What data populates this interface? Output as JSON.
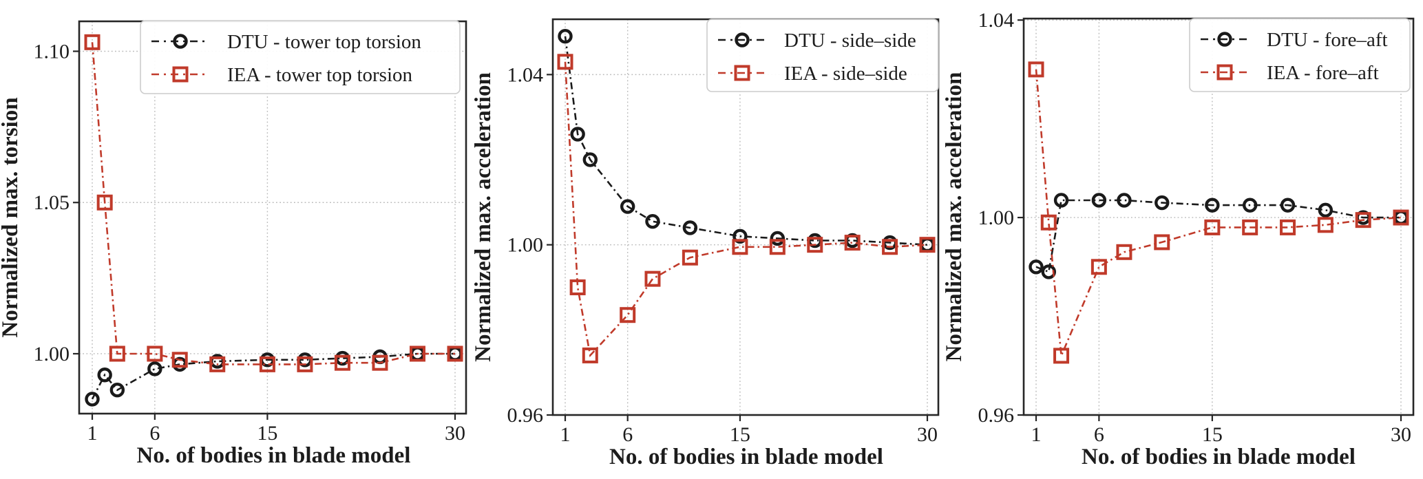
{
  "figure": {
    "background": "#ffffff",
    "text_color": "#1c1c1c",
    "spine_color": "#262626",
    "grid_color": "#b9b9b9",
    "legend_border_color": "#cccccc"
  },
  "chart_data": [
    {
      "type": "line",
      "title": "",
      "xlabel": "No. of bodies in blade model",
      "ylabel": "Normalized max. torsion",
      "x": [
        1,
        2,
        3,
        6,
        8,
        11,
        15,
        18,
        21,
        24,
        27,
        30
      ],
      "xticks": [
        1,
        6,
        15,
        30
      ],
      "xtick_labels": [
        "1",
        "6",
        "15",
        "30"
      ],
      "yticks": [
        1.0,
        1.05,
        1.1
      ],
      "ytick_labels": [
        "1.00",
        "1.05",
        "1.10"
      ],
      "xlim": [
        -0.45,
        31.45
      ],
      "ylim": [
        0.9802,
        1.1099
      ],
      "grid": true,
      "legend_position": "upper right",
      "series": [
        {
          "name": "DTU - tower top torsion",
          "color": "#1a1a1a",
          "marker": "circle",
          "linestyle": "dashdot",
          "values": [
            0.985,
            0.993,
            0.988,
            0.995,
            0.9965,
            0.9975,
            0.998,
            0.998,
            0.9985,
            0.999,
            1.0,
            1.0
          ]
        },
        {
          "name": "IEA - tower top torsion",
          "color": "#c03a2a",
          "marker": "square",
          "linestyle": "dashdot",
          "values": [
            1.103,
            1.05,
            1.0,
            1.0,
            0.998,
            0.9965,
            0.9965,
            0.9965,
            0.997,
            0.997,
            1.0,
            1.0
          ]
        }
      ]
    },
    {
      "type": "line",
      "title": "",
      "xlabel": "No. of bodies in blade model",
      "ylabel": "Normalized max. acceleration",
      "x": [
        1,
        2,
        3,
        6,
        8,
        11,
        15,
        18,
        21,
        24,
        27,
        30
      ],
      "xticks": [
        1,
        6,
        15,
        30
      ],
      "xtick_labels": [
        "1",
        "6",
        "15",
        "30"
      ],
      "yticks": [
        0.96,
        1.0,
        1.04
      ],
      "ytick_labels": [
        "0.96",
        "1.00",
        "1.04"
      ],
      "xlim": [
        -0.45,
        31.45
      ],
      "ylim": [
        0.96,
        1.053
      ],
      "grid": true,
      "legend_position": "upper right",
      "series": [
        {
          "name": "DTU - side–side",
          "color": "#1a1a1a",
          "marker": "circle",
          "linestyle": "dashdot",
          "values": [
            1.049,
            1.026,
            1.02,
            1.009,
            1.0055,
            1.004,
            1.002,
            1.0015,
            1.001,
            1.001,
            1.0005,
            1.0
          ]
        },
        {
          "name": "IEA - side–side",
          "color": "#c03a2a",
          "marker": "square",
          "linestyle": "dashdot",
          "values": [
            1.043,
            0.99,
            0.974,
            0.9835,
            0.992,
            0.997,
            0.9995,
            0.9995,
            1.0,
            1.0005,
            0.9995,
            1.0
          ]
        }
      ]
    },
    {
      "type": "line",
      "title": "",
      "xlabel": "No. of bodies in blade model",
      "ylabel": "Normalized max. acceleration",
      "x": [
        1,
        2,
        3,
        6,
        8,
        11,
        15,
        18,
        21,
        24,
        27,
        30
      ],
      "xticks": [
        1,
        6,
        15,
        30
      ],
      "xtick_labels": [
        "1",
        "6",
        "15",
        "30"
      ],
      "yticks": [
        0.96,
        1.0,
        1.04
      ],
      "ytick_labels": [
        "0.96",
        "1.00",
        "1.04"
      ],
      "xlim": [
        -0.45,
        31.45
      ],
      "ylim": [
        0.96,
        1.0403
      ],
      "grid": true,
      "legend_position": "upper right",
      "series": [
        {
          "name": "DTU - fore–aft",
          "color": "#1a1a1a",
          "marker": "circle",
          "linestyle": "dashdot",
          "values": [
            0.99,
            0.989,
            1.0035,
            1.0035,
            1.0035,
            1.003,
            1.0025,
            1.0025,
            1.0025,
            1.0015,
            1.0,
            1.0
          ]
        },
        {
          "name": "IEA - fore–aft",
          "color": "#c03a2a",
          "marker": "square",
          "linestyle": "dashdot",
          "values": [
            1.03,
            0.999,
            0.972,
            0.99,
            0.993,
            0.995,
            0.998,
            0.998,
            0.998,
            0.9985,
            0.9995,
            1.0
          ]
        }
      ]
    }
  ]
}
